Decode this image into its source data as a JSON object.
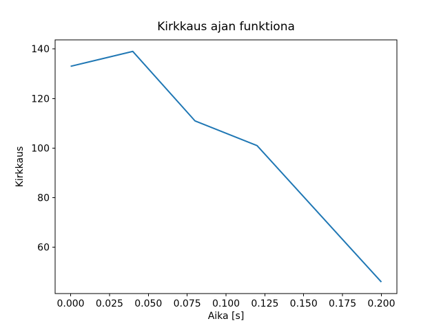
{
  "figure": {
    "background": "#ffffff"
  },
  "chart_data": {
    "type": "line",
    "title": "Kirkkaus ajan funktiona",
    "xlabel": "Aika [s]",
    "ylabel": "Kirkkaus",
    "series": [
      {
        "name": "kirkkaus",
        "x": [
          0.0,
          0.04,
          0.08,
          0.12,
          0.2
        ],
        "y": [
          133,
          139,
          111,
          101,
          46
        ],
        "color": "#1f77b4",
        "line_width": 2
      }
    ],
    "xlim": [
      -0.01,
      0.21
    ],
    "ylim": [
      41.35,
      143.65
    ],
    "xtick_values": [
      0.0,
      0.025,
      0.05,
      0.075,
      0.1,
      0.125,
      0.15,
      0.175,
      0.2
    ],
    "xtick_labels": [
      "0.000",
      "0.025",
      "0.050",
      "0.075",
      "0.100",
      "0.125",
      "0.150",
      "0.175",
      "0.200"
    ],
    "ytick_values": [
      60,
      80,
      100,
      120,
      140
    ],
    "ytick_labels": [
      "60",
      "80",
      "100",
      "120",
      "140"
    ],
    "grid": false,
    "legend": "none",
    "axes_color": "#000000",
    "text_color": "#000000"
  }
}
